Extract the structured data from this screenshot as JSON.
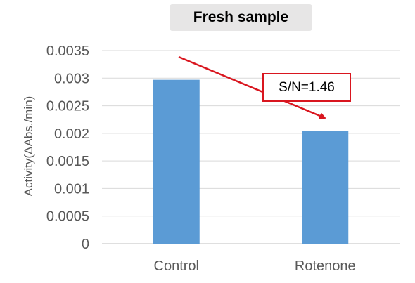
{
  "chart_data": {
    "type": "bar",
    "title": "Fresh sample",
    "ylabel": "Activity(ΔAbs./min)",
    "xlabel": "",
    "categories": [
      "Control",
      "Rotenone"
    ],
    "values": [
      0.00297,
      0.00204
    ],
    "ylim": [
      0,
      0.0035
    ],
    "yticks": [
      "0",
      "0.0005",
      "0.001",
      "0.0015",
      "0.002",
      "0.0025",
      "0.003",
      "0.0035"
    ],
    "ytick_values": [
      0,
      0.0005,
      0.001,
      0.0015,
      0.002,
      0.0025,
      0.003,
      0.0035
    ],
    "grid": true,
    "legend": "none",
    "bar_color": "#5b9bd5",
    "annotation": {
      "text": "S/N=1.46",
      "color": "#d9161f"
    }
  }
}
